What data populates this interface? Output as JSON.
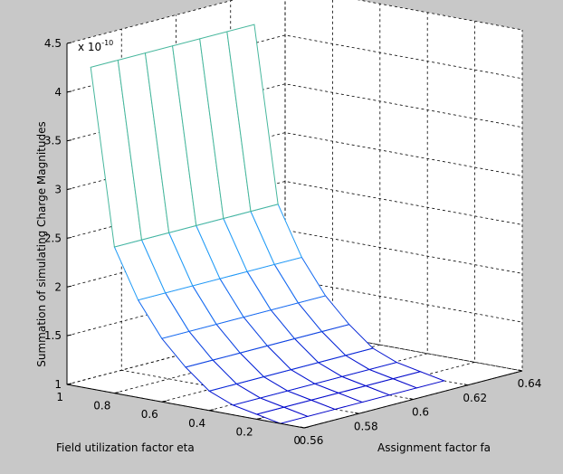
{
  "chart_data": {
    "type": "surface",
    "colors": {
      "background": "#c8c8c8",
      "plot_area": "#ffffff",
      "grid": "#000000",
      "high": "#a00000",
      "mid": "#33e0c0",
      "low_mid": "#1e90ff",
      "low": "#0000c8"
    },
    "zlabel": "Summation of simulating Charge Magnitudes",
    "xlabel": "Field utilization factor eta",
    "ylabel": "Assignment factor fa",
    "z_scale_label": "x 10",
    "z_scale_exp": "-10",
    "eta_ticks": [
      "1",
      "0.8",
      "0.6",
      "0.4",
      "0.2",
      "0"
    ],
    "fa_ticks": [
      "0.56",
      "0.58",
      "0.6",
      "0.62",
      "0.64"
    ],
    "z_ticks": [
      "1",
      "1.5",
      "2",
      "2.5",
      "3",
      "3.5",
      "4",
      "4.5"
    ],
    "eta_range": [
      0,
      1
    ],
    "fa_range": [
      0.56,
      0.64
    ],
    "z_range": [
      1,
      4.5
    ],
    "grid": true,
    "eta_values": [
      0.1,
      0.2,
      0.3,
      0.4,
      0.5,
      0.6,
      0.7,
      0.8,
      0.9
    ],
    "fa_values": [
      0.56,
      0.57,
      0.58,
      0.59,
      0.6,
      0.61,
      0.62
    ],
    "z_values_by_eta": [
      1.0,
      1.05,
      1.1,
      1.2,
      1.4,
      1.65,
      2.0,
      2.5,
      4.3
    ]
  }
}
